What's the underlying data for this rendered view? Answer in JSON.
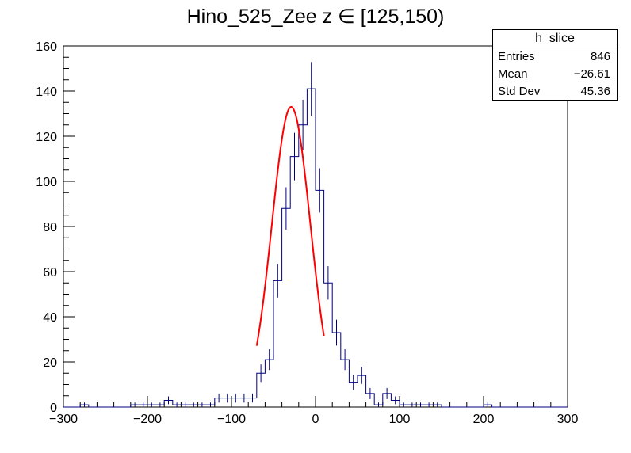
{
  "title": "Hino_525_Zee z  ∈ [125,150)",
  "stats": {
    "name": "h_slice",
    "rows": [
      {
        "label": "Entries",
        "value": "846"
      },
      {
        "label": "Mean",
        "value": "−26.61"
      },
      {
        "label": "Std Dev",
        "value": "45.36"
      }
    ]
  },
  "colors": {
    "histogram": "#000080",
    "fit": "#ff0000",
    "axes": "#000000"
  },
  "chart_data": {
    "type": "histogram",
    "title": "Hino_525_Zee z  ∈ [125,150)",
    "xlabel": "",
    "ylabel": "",
    "xlim": [
      -300,
      300
    ],
    "ylim": [
      0,
      160
    ],
    "x_ticks": [
      -300,
      -200,
      -100,
      0,
      100,
      200,
      300
    ],
    "y_ticks": [
      0,
      20,
      40,
      60,
      80,
      100,
      120,
      140,
      160
    ],
    "x_tick_labels": [
      "−300",
      "−200",
      "−100",
      "0",
      "100",
      "200",
      "300"
    ],
    "y_tick_labels": [
      "0",
      "20",
      "40",
      "60",
      "80",
      "100",
      "120",
      "140",
      "160"
    ],
    "bin_edges_start": -300,
    "bin_width": 10,
    "counts": [
      0,
      0,
      1,
      0,
      0,
      0,
      0,
      0,
      1,
      1,
      1,
      1,
      3,
      1,
      1,
      1,
      1,
      1,
      4,
      4,
      4,
      4,
      4,
      15,
      21,
      56,
      88,
      111,
      125,
      141,
      96,
      55,
      33,
      21,
      11,
      14,
      6,
      1,
      6,
      3,
      1,
      1,
      1,
      1,
      1,
      0,
      0,
      0,
      0,
      0,
      1,
      0,
      0,
      0,
      0,
      0,
      0,
      0,
      0,
      0
    ],
    "fit": {
      "type": "gaussian",
      "constant": 133,
      "mean": -29,
      "sigma": 23,
      "range": [
        -70,
        10
      ]
    },
    "grid": false,
    "legend": "top-right"
  }
}
